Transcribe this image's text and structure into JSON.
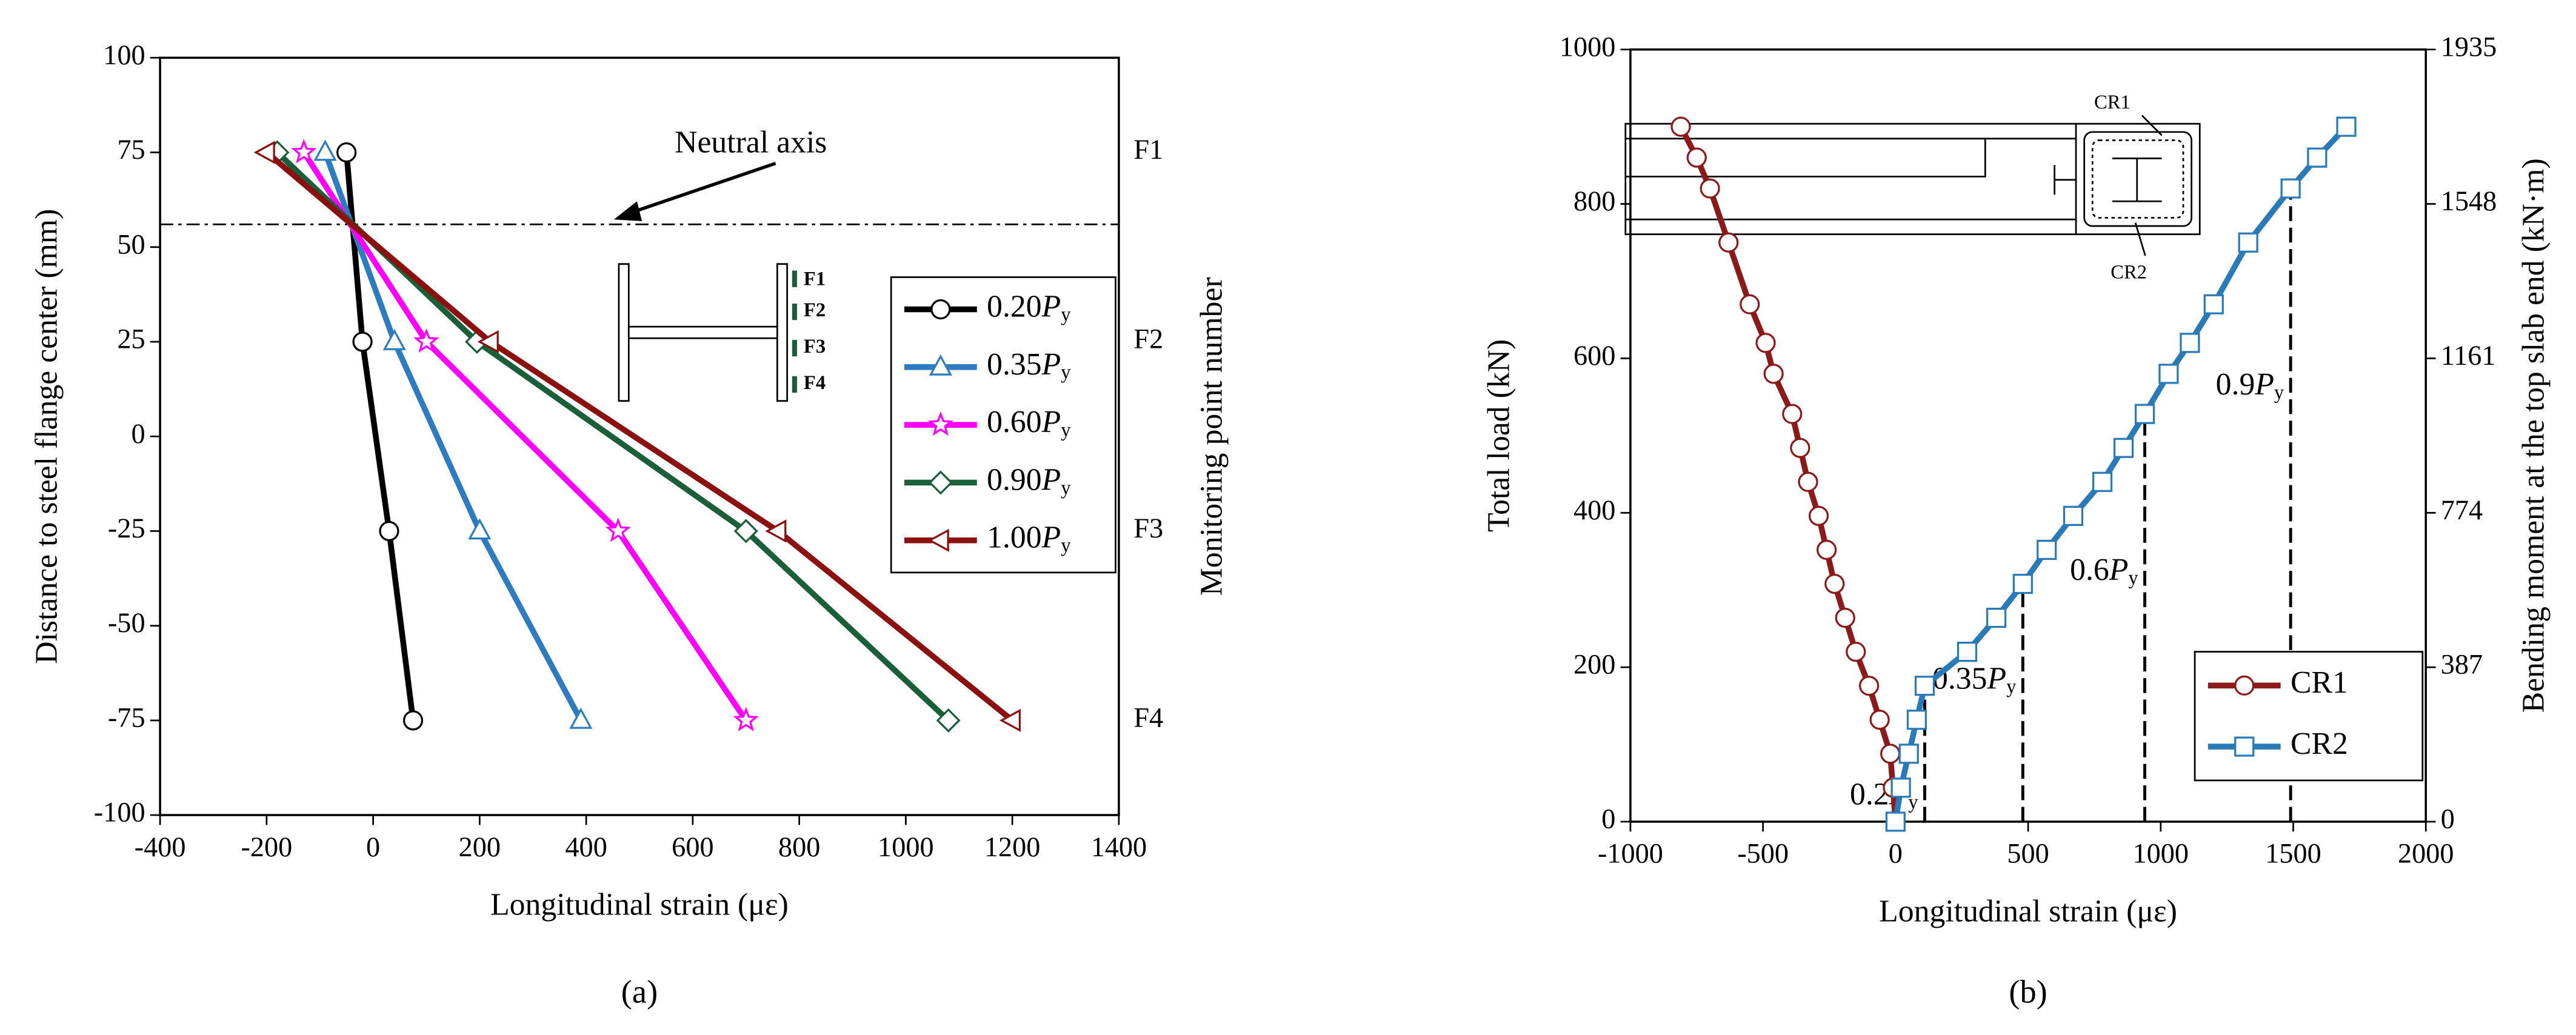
{
  "chart_data": [
    {
      "type": "line",
      "caption": "(a)",
      "xlabel": "Longitudinal strain (με)",
      "ylabel": "Distance to steel flange center (mm)",
      "y2label": "Monitoring point number",
      "xlim": [
        -400,
        1400
      ],
      "xticks": [
        -400,
        -200,
        0,
        200,
        400,
        600,
        800,
        1000,
        1200,
        1400
      ],
      "ylim": [
        -100,
        100
      ],
      "yticks": [
        -100,
        -75,
        -50,
        -25,
        0,
        25,
        50,
        75,
        100
      ],
      "y2ticks": [
        {
          "value": 75,
          "label": "F1"
        },
        {
          "value": 25,
          "label": "F2"
        },
        {
          "value": -25,
          "label": "F3"
        },
        {
          "value": -75,
          "label": "F4"
        }
      ],
      "annotation": {
        "text": "Neutral axis",
        "y": 56
      },
      "inset_labels": [
        "F1",
        "F2",
        "F3",
        "F4"
      ],
      "series": [
        {
          "name": "0.20Py",
          "color": "#000000",
          "marker": "circle",
          "x": [
            -50,
            -20,
            30,
            75
          ],
          "values": [
            75,
            25,
            -25,
            -75
          ]
        },
        {
          "name": "0.35Py",
          "color": "#2f7bbf",
          "marker": "triangle",
          "x": [
            -90,
            40,
            200,
            390
          ],
          "values": [
            75,
            25,
            -25,
            -75
          ]
        },
        {
          "name": "0.60Py",
          "color": "#ff00ff",
          "marker": "star",
          "x": [
            -130,
            100,
            460,
            700
          ],
          "values": [
            75,
            25,
            -25,
            -75
          ]
        },
        {
          "name": "0.90Py",
          "color": "#1a5e3a",
          "marker": "diamond",
          "x": [
            -180,
            195,
            700,
            1080
          ],
          "values": [
            75,
            25,
            -25,
            -75
          ]
        },
        {
          "name": "1.00Py",
          "color": "#8b1010",
          "marker": "ltriangle",
          "x": [
            -200,
            220,
            760,
            1200
          ],
          "values": [
            75,
            25,
            -25,
            -75
          ]
        }
      ]
    },
    {
      "type": "line",
      "caption": "(b)",
      "xlabel": "Longitudinal strain (με)",
      "ylabel": "Total load  (kN)",
      "y2label": "Bending moment at the top slab end (kN·m)",
      "xlim": [
        -1000,
        2000
      ],
      "xticks": [
        -1000,
        -500,
        0,
        500,
        1000,
        1500,
        2000
      ],
      "ylim": [
        0,
        1000
      ],
      "yticks": [
        0,
        200,
        400,
        600,
        800,
        1000
      ],
      "y2lim": [
        0,
        1935
      ],
      "y2ticks": [
        0,
        387,
        774,
        1161,
        1548,
        1935
      ],
      "inset_labels": [
        "CR1",
        "CR2"
      ],
      "annotations": [
        {
          "text": "0.2Py",
          "x": 110,
          "y": 176
        },
        {
          "text": "0.35Py",
          "x": 480,
          "y": 308
        },
        {
          "text": "0.6Py",
          "x": 940,
          "y": 528
        },
        {
          "text": "0.9Py",
          "x": 1490,
          "y": 820
        }
      ],
      "series": [
        {
          "name": "CR1",
          "color": "#8b1a1a",
          "marker": "circle",
          "x": [
            0,
            -10,
            -20,
            -60,
            -100,
            -150,
            -190,
            -230,
            -260,
            -290,
            -330,
            -360,
            -390,
            -460,
            -490,
            -550,
            -630,
            -700,
            -750,
            -810
          ],
          "values": [
            0,
            44,
            88,
            132,
            176,
            220,
            264,
            308,
            352,
            396,
            440,
            484,
            528,
            580,
            620,
            670,
            750,
            820,
            860,
            900
          ]
        },
        {
          "name": "CR2",
          "color": "#2a7ab8",
          "marker": "square",
          "x": [
            0,
            20,
            50,
            80,
            110,
            270,
            380,
            480,
            570,
            670,
            780,
            860,
            940,
            1030,
            1110,
            1200,
            1330,
            1490,
            1590,
            1700
          ],
          "values": [
            0,
            44,
            88,
            132,
            176,
            220,
            264,
            308,
            352,
            396,
            440,
            484,
            528,
            580,
            620,
            670,
            750,
            820,
            860,
            900
          ]
        }
      ]
    }
  ]
}
